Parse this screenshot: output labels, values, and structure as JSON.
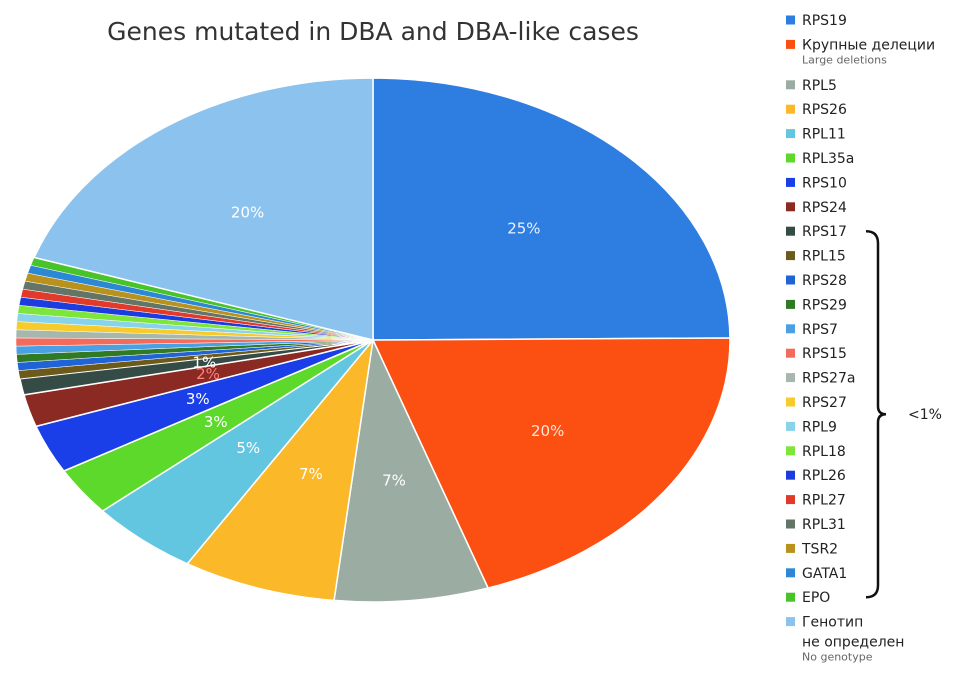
{
  "chart_data": {
    "type": "pie",
    "title": "Genes mutated in DBA and DBA-like cases",
    "slices": [
      {
        "name": "RPS19",
        "value": 25,
        "label": "25%",
        "color": "#2e7de0",
        "label_color": "#e8f0ff"
      },
      {
        "name": "Крупные делеции",
        "subtitle": "Large deletions",
        "value": 20,
        "label": "20%",
        "color": "#fc4f12",
        "label_color": "#ffe6dc"
      },
      {
        "name": "RPL5",
        "value": 7,
        "label": "7%",
        "color": "#9bada3",
        "label_color": "#ffffff"
      },
      {
        "name": "RPS26",
        "value": 7,
        "label": "7%",
        "color": "#fbb929",
        "label_color": "#ffffff"
      },
      {
        "name": "RPL11",
        "value": 5,
        "label": "5%",
        "color": "#63c6e0",
        "label_color": "#ffffff"
      },
      {
        "name": "RPL35a",
        "value": 3,
        "label": "3%",
        "color": "#5cd92a",
        "label_color": "#ffffff"
      },
      {
        "name": "RPS10",
        "value": 3,
        "label": "3%",
        "color": "#1a3fe8",
        "label_color": "#ffffff"
      },
      {
        "name": "RPS24",
        "value": 2,
        "label": "2%",
        "color": "#8b2a22",
        "label_color": "#ff8080"
      },
      {
        "name": "RPS17",
        "value": 1,
        "label": "1%",
        "color": "#354b45",
        "label_color": "#ffffff"
      },
      {
        "name": "RPL15",
        "value": 0.5,
        "label": "",
        "color": "#6b5a1a"
      },
      {
        "name": "RPS28",
        "value": 0.5,
        "label": "",
        "color": "#1f63d6"
      },
      {
        "name": "RPS29",
        "value": 0.5,
        "label": "",
        "color": "#2f7a23"
      },
      {
        "name": "RPS7",
        "value": 0.5,
        "label": "",
        "color": "#4ba0e4"
      },
      {
        "name": "RPS15",
        "value": 0.5,
        "label": "",
        "color": "#f26b5b"
      },
      {
        "name": "RPS27a",
        "value": 0.5,
        "label": "",
        "color": "#a6b8ad"
      },
      {
        "name": "RPS27",
        "value": 0.5,
        "label": "",
        "color": "#f7cb2b"
      },
      {
        "name": "RPL9",
        "value": 0.5,
        "label": "",
        "color": "#86d3ea"
      },
      {
        "name": "RPL18",
        "value": 0.5,
        "label": "",
        "color": "#7ee53a"
      },
      {
        "name": "RPL26",
        "value": 0.5,
        "label": "",
        "color": "#1b3ddf"
      },
      {
        "name": "RPL27",
        "value": 0.5,
        "label": "",
        "color": "#e23a2a"
      },
      {
        "name": "RPL31",
        "value": 0.5,
        "label": "",
        "color": "#627566"
      },
      {
        "name": "TSR2",
        "value": 0.5,
        "label": "",
        "color": "#b8921c"
      },
      {
        "name": "GATA1",
        "value": 0.5,
        "label": "",
        "color": "#2c88d4"
      },
      {
        "name": "EPO",
        "value": 0.5,
        "label": "",
        "color": "#48c32a"
      },
      {
        "name": "Генотип не определен",
        "lines": [
          "Генотип",
          "не определен"
        ],
        "subtitle": "No genotype",
        "value": 20,
        "label": "20%",
        "color": "#8cc3ee",
        "label_color": "#ffffff"
      }
    ],
    "bracket": {
      "from": "RPS17",
      "to": "EPO",
      "label": "<1%"
    },
    "legend_position": "right"
  }
}
